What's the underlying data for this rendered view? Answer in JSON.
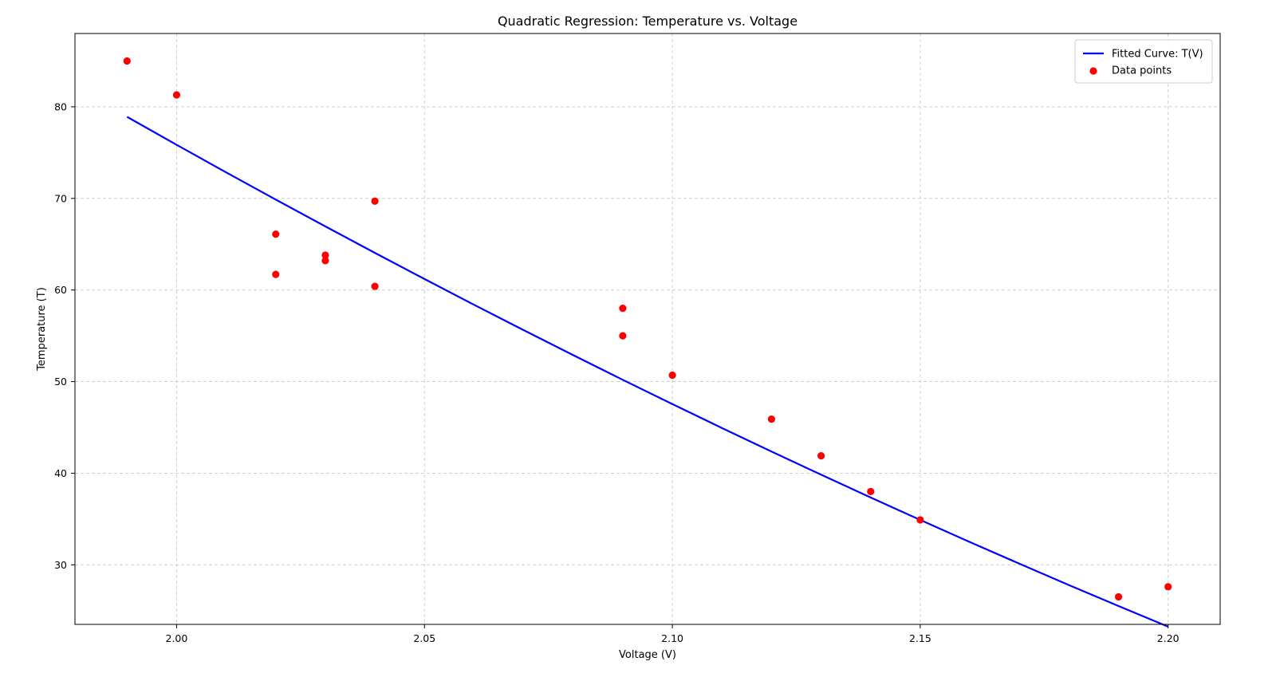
{
  "chart_data": {
    "type": "scatter",
    "title": "Quadratic Regression: Temperature vs. Voltage",
    "xlabel": "Voltage (V)",
    "ylabel": "Temperature (T)",
    "xlim": [
      1.9795,
      2.2105
    ],
    "ylim": [
      23.5,
      88.0
    ],
    "xticks": [
      2.0,
      2.05,
      2.1,
      2.15,
      2.2
    ],
    "xtick_labels": [
      "2.00",
      "2.05",
      "2.10",
      "2.15",
      "2.20"
    ],
    "yticks": [
      30,
      40,
      50,
      60,
      70,
      80
    ],
    "ytick_labels": [
      "30",
      "40",
      "50",
      "60",
      "70",
      "80"
    ],
    "grid": true,
    "legend_position": "top-right",
    "series": [
      {
        "name": "Fitted Curve: T(V)",
        "kind": "line",
        "color": "#0000ff",
        "x": [
          1.99,
          2.0,
          2.01,
          2.02,
          2.03,
          2.04,
          2.05,
          2.06,
          2.07,
          2.08,
          2.09,
          2.1,
          2.11,
          2.12,
          2.13,
          2.14,
          2.15,
          2.16,
          2.17,
          2.18,
          2.19,
          2.2
        ],
        "y": [
          78.9,
          75.85,
          72.84,
          69.87,
          66.94,
          64.05,
          61.2,
          58.39,
          55.62,
          52.89,
          50.2,
          47.55,
          44.94,
          42.37,
          39.84,
          37.35,
          34.9,
          32.49,
          30.12,
          27.79,
          25.5,
          23.25
        ]
      },
      {
        "name": "Data points",
        "kind": "scatter",
        "color": "#ff0000",
        "x": [
          1.99,
          2.0,
          2.02,
          2.02,
          2.03,
          2.03,
          2.04,
          2.04,
          2.09,
          2.09,
          2.1,
          2.12,
          2.13,
          2.14,
          2.15,
          2.19,
          2.2
        ],
        "y": [
          85.0,
          81.3,
          66.1,
          61.7,
          63.8,
          63.2,
          69.7,
          60.4,
          58.0,
          55.0,
          50.7,
          45.9,
          41.9,
          38.0,
          34.9,
          26.5,
          27.6
        ]
      }
    ]
  }
}
